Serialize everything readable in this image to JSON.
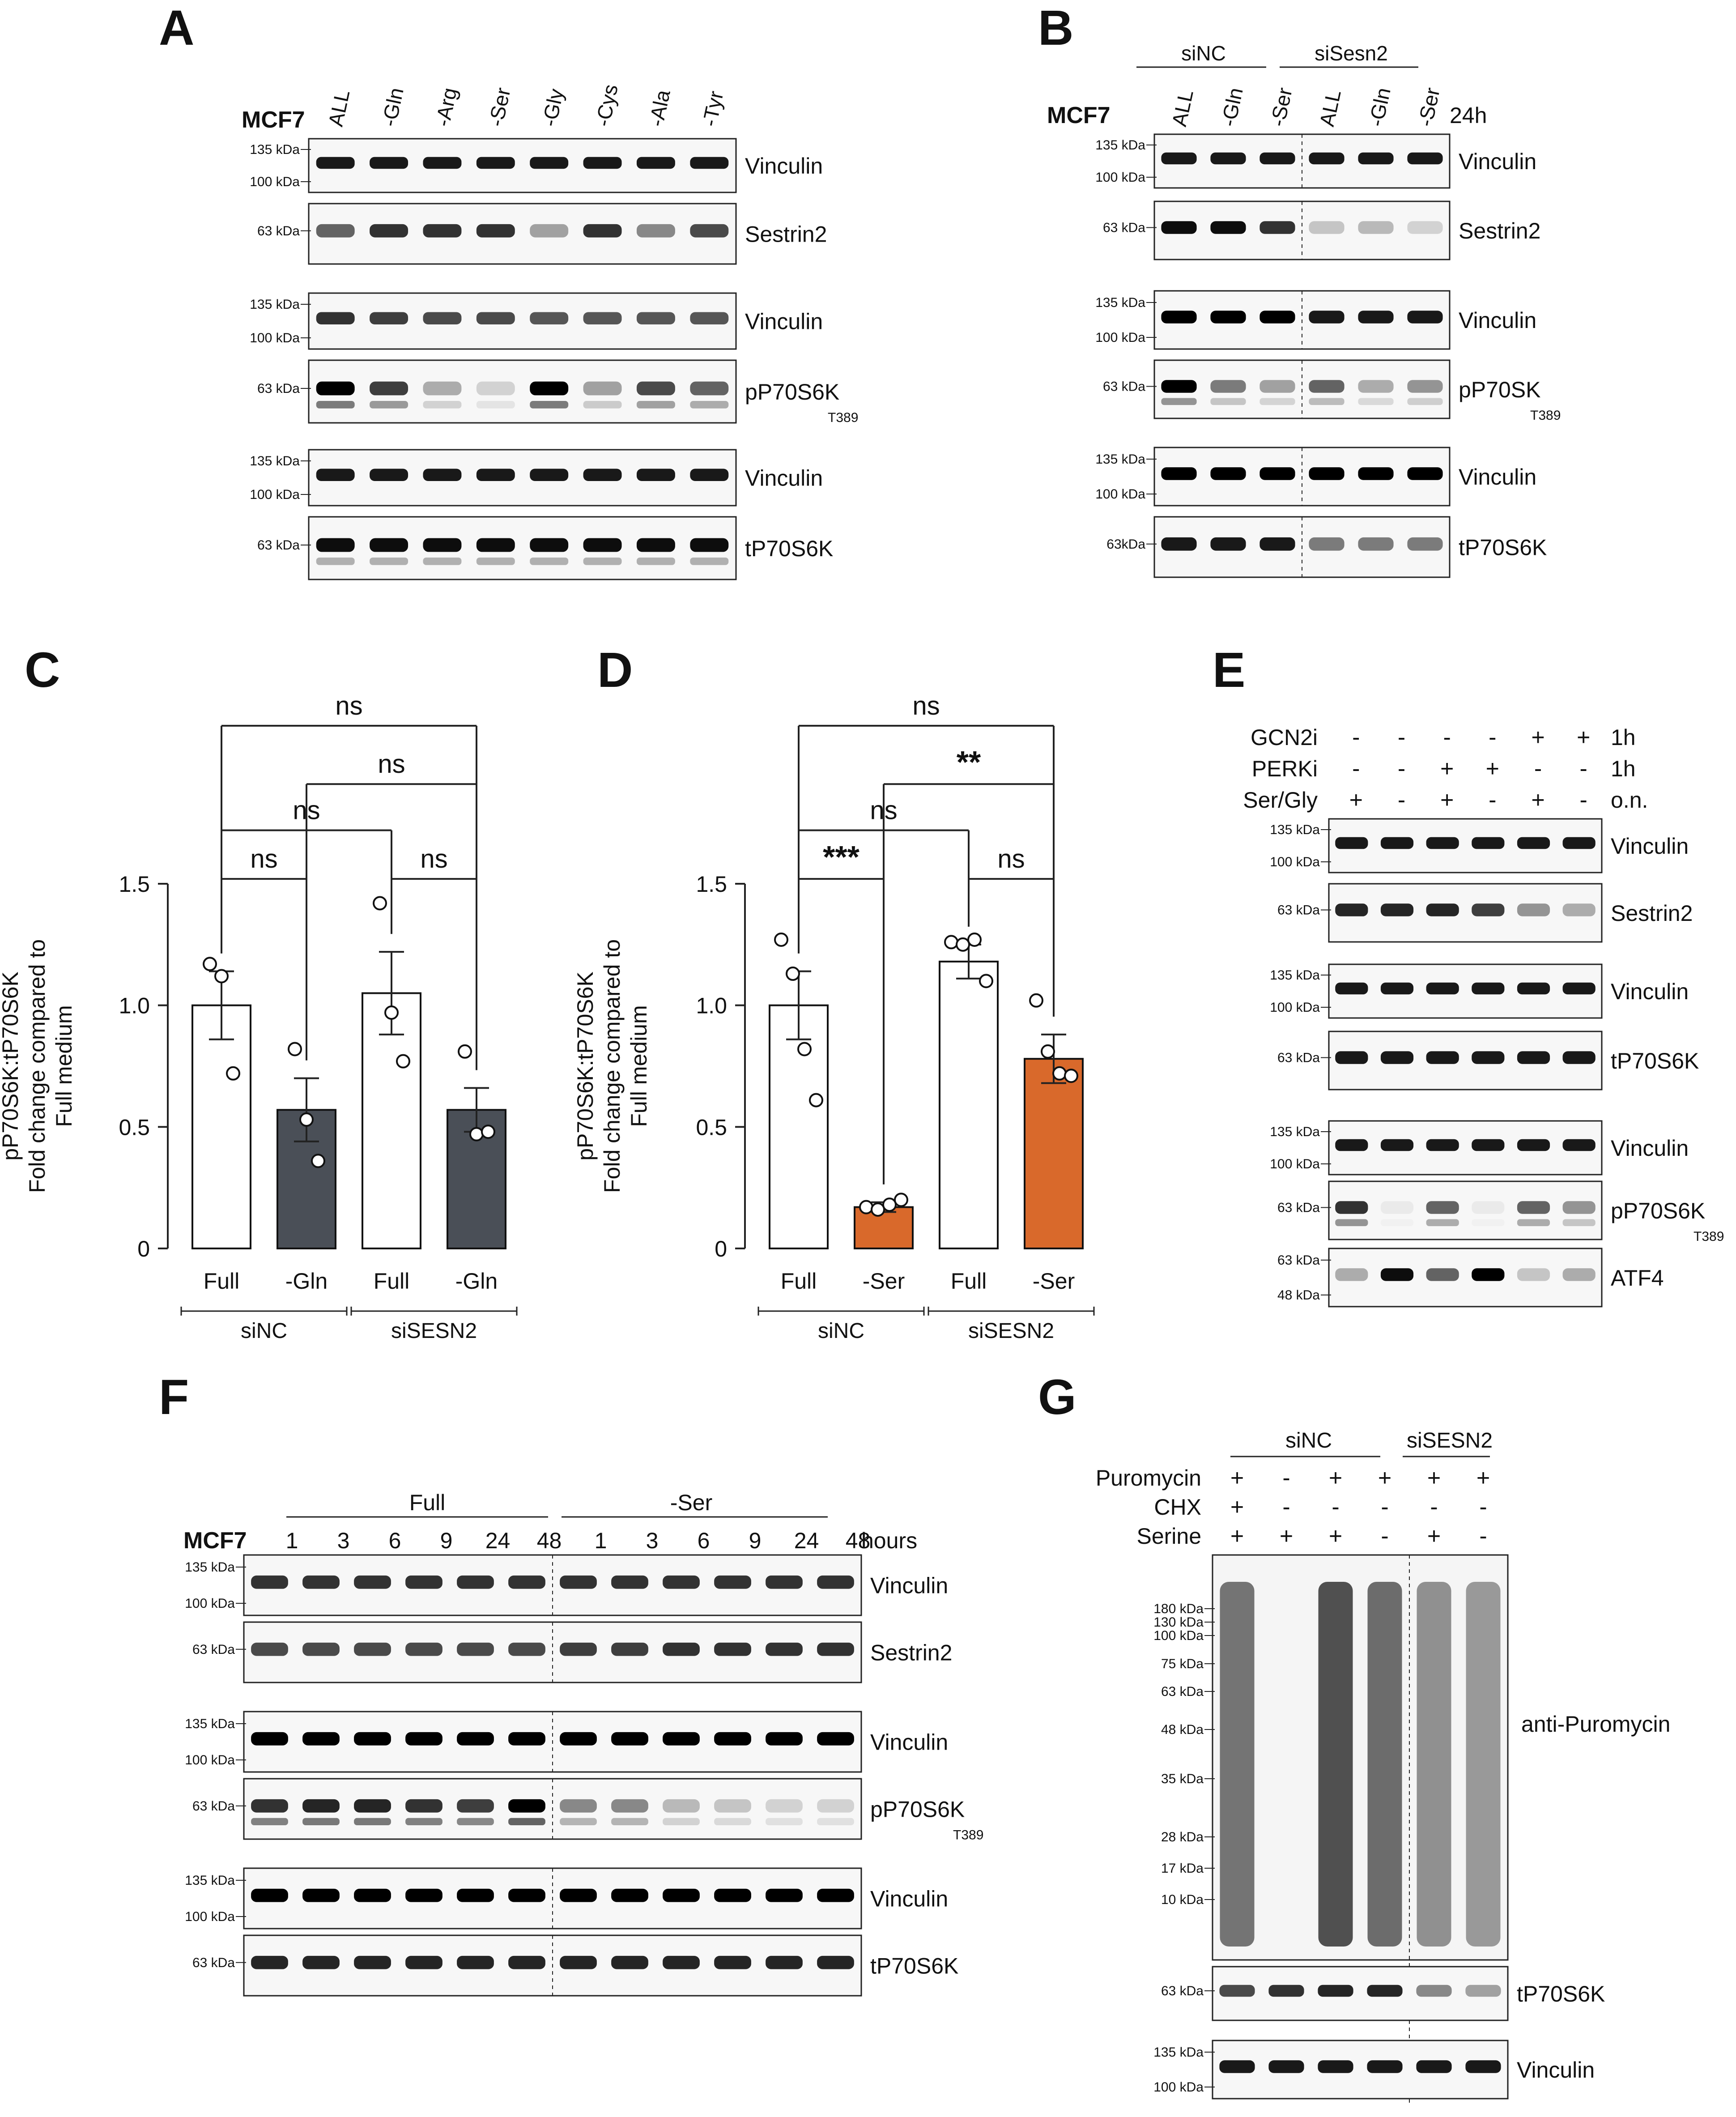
{
  "panels": {
    "A": {
      "letter": "A",
      "cell_line": "MCF7",
      "lanes": [
        "ALL",
        "-Gln",
        "-Arg",
        "-Ser",
        "-Gly",
        "-Cys",
        "-Ala",
        "-Tyr"
      ],
      "blots": [
        {
          "label": "Vinculin",
          "markers": [
            "135 kDa",
            "100 kDa"
          ]
        },
        {
          "label": "Sestrin2",
          "markers": [
            "63 kDa"
          ]
        },
        {
          "label": "Vinculin",
          "markers": [
            "135 kDa",
            "100 kDa"
          ]
        },
        {
          "label": "pP70S6K",
          "sub": "T389",
          "markers": [
            "63 kDa"
          ]
        },
        {
          "label": "Vinculin",
          "markers": [
            "135 kDa",
            "100 kDa"
          ]
        },
        {
          "label": "tP70S6K",
          "markers": [
            "63 kDa"
          ]
        }
      ]
    },
    "B": {
      "letter": "B",
      "cell_line": "MCF7",
      "time": "24h",
      "groups": [
        "siNC",
        "siSesn2"
      ],
      "lanes": [
        "ALL",
        "-Gln",
        "-Ser",
        "ALL",
        "-Gln",
        "-Ser"
      ],
      "blots": [
        {
          "label": "Vinculin",
          "markers": [
            "135 kDa",
            "100 kDa"
          ]
        },
        {
          "label": "Sestrin2",
          "markers": [
            "63 kDa"
          ]
        },
        {
          "label": "Vinculin",
          "markers": [
            "135 kDa",
            "100 kDa"
          ]
        },
        {
          "label": "pP70SK",
          "sub": "T389",
          "markers": [
            "63 kDa"
          ]
        },
        {
          "label": "Vinculin",
          "markers": [
            "135 kDa",
            "100 kDa"
          ]
        },
        {
          "label": "tP70S6K",
          "markers": [
            "63kDa"
          ]
        }
      ]
    },
    "C": {
      "letter": "C"
    },
    "D": {
      "letter": "D"
    },
    "E": {
      "letter": "E",
      "treatments": [
        {
          "name": "GCN2i",
          "signs": [
            "-",
            "-",
            "-",
            "-",
            "+",
            "+"
          ],
          "time": "1h"
        },
        {
          "name": "PERKi",
          "signs": [
            "-",
            "-",
            "+",
            "+",
            "-",
            "-"
          ],
          "time": "1h"
        },
        {
          "name": "Ser/Gly",
          "signs": [
            "+",
            "-",
            "+",
            "-",
            "+",
            "-"
          ],
          "time": "o.n."
        }
      ],
      "blots": [
        {
          "label": "Vinculin",
          "markers": [
            "135 kDa",
            "100 kDa"
          ]
        },
        {
          "label": "Sestrin2",
          "markers": [
            "63 kDa"
          ]
        },
        {
          "label": "Vinculin",
          "markers": [
            "135 kDa",
            "100 kDa"
          ]
        },
        {
          "label": "tP70S6K",
          "markers": [
            "63 kDa"
          ]
        },
        {
          "label": "Vinculin",
          "markers": [
            "135 kDa",
            "100 kDa"
          ]
        },
        {
          "label": "pP70S6K",
          "sub": "T389",
          "markers": [
            "63 kDa"
          ]
        },
        {
          "label": "ATF4",
          "markers": [
            "63 kDa",
            "48 kDa"
          ]
        }
      ]
    },
    "F": {
      "letter": "F",
      "cell_line": "MCF7",
      "groups": [
        "Full",
        "-Ser"
      ],
      "lanes": [
        "1",
        "3",
        "6",
        "9",
        "24",
        "48",
        "1",
        "3",
        "6",
        "9",
        "24",
        "48"
      ],
      "hours_label": "hours",
      "blots": [
        {
          "label": "Vinculin",
          "markers": [
            "135 kDa",
            "100 kDa"
          ]
        },
        {
          "label": "Sestrin2",
          "markers": [
            "63 kDa"
          ]
        },
        {
          "label": "Vinculin",
          "markers": [
            "135 kDa",
            "100 kDa"
          ]
        },
        {
          "label": "pP70S6K",
          "sub": "T389",
          "markers": [
            "63 kDa"
          ]
        },
        {
          "label": "Vinculin",
          "markers": [
            "135 kDa",
            "100 kDa"
          ]
        },
        {
          "label": "tP70S6K",
          "markers": [
            "63 kDa"
          ]
        }
      ]
    },
    "G": {
      "letter": "G",
      "groups": [
        "siNC",
        "siSESN2"
      ],
      "treatments": [
        {
          "name": "Puromycin",
          "signs": [
            "+",
            "-",
            "+",
            "+",
            "+",
            "+"
          ]
        },
        {
          "name": "CHX",
          "signs": [
            "+",
            "-",
            "-",
            "-",
            "-",
            "-"
          ]
        },
        {
          "name": "Serine",
          "signs": [
            "+",
            "+",
            "+",
            "-",
            "+",
            "-"
          ]
        }
      ],
      "blots": [
        {
          "label": "anti-Puromycin",
          "markers": [
            "180 kDa",
            "130 kDa",
            "100 kDa",
            "75 kDa",
            "63 kDa",
            "48 kDa",
            "35 kDa",
            "28 kDa",
            "17 kDa",
            "10 kDa"
          ]
        },
        {
          "label": "tP70S6K",
          "markers": [
            "63 kDa"
          ]
        },
        {
          "label": "Vinculin",
          "markers": [
            "135 kDa",
            "100 kDa"
          ]
        }
      ]
    }
  },
  "chart_data": [
    {
      "panel": "C",
      "type": "bar",
      "ylabel": "pP70S6K:tP70S6K\nFold change compared to\nFull medium",
      "yticks": [
        "0",
        "0.5",
        "1.0",
        "1.5"
      ],
      "ylim": [
        0,
        1.5
      ],
      "categories": [
        "Full",
        "-Gln",
        "Full",
        "-Gln"
      ],
      "groups": [
        {
          "name": "siNC",
          "categories": [
            0,
            1
          ]
        },
        {
          "name": "siSESN2",
          "categories": [
            2,
            3
          ]
        }
      ],
      "values": [
        1.0,
        0.57,
        1.05,
        0.57
      ],
      "errors": [
        0.14,
        0.13,
        0.17,
        0.09
      ],
      "points": [
        [
          1.17,
          1.12,
          0.72
        ],
        [
          0.82,
          0.53,
          0.36
        ],
        [
          1.42,
          0.97,
          0.77
        ],
        [
          0.81,
          0.47,
          0.48
        ]
      ],
      "bar_colors": [
        "#ffffff",
        "#4a4f57",
        "#ffffff",
        "#4a4f57"
      ],
      "comparisons": [
        {
          "from": 0,
          "to": 1,
          "label": "ns"
        },
        {
          "from": 2,
          "to": 3,
          "label": "ns"
        },
        {
          "from": 0,
          "to": 2,
          "label": "ns"
        },
        {
          "from": 1,
          "to": 3,
          "label": "ns"
        },
        {
          "from": 0,
          "to": 3,
          "label": "ns"
        }
      ]
    },
    {
      "panel": "D",
      "type": "bar",
      "ylabel": "pP70S6K:tP70S6K\nFold change compared to\nFull medium",
      "yticks": [
        "0",
        "0.5",
        "1.0",
        "1.5"
      ],
      "ylim": [
        0,
        1.5
      ],
      "categories": [
        "Full",
        "-Ser",
        "Full",
        "-Ser"
      ],
      "groups": [
        {
          "name": "siNC",
          "categories": [
            0,
            1
          ]
        },
        {
          "name": "siSESN2",
          "categories": [
            2,
            3
          ]
        }
      ],
      "values": [
        1.0,
        0.17,
        1.18,
        0.78
      ],
      "errors": [
        0.14,
        0.02,
        0.07,
        0.1
      ],
      "points": [
        [
          1.27,
          1.13,
          0.82,
          0.61
        ],
        [
          0.17,
          0.16,
          0.18,
          0.2
        ],
        [
          1.26,
          1.25,
          1.27,
          1.1
        ],
        [
          1.02,
          0.81,
          0.72,
          0.71
        ]
      ],
      "bar_colors": [
        "#ffffff",
        "#d9692b",
        "#ffffff",
        "#d9692b"
      ],
      "comparisons": [
        {
          "from": 0,
          "to": 1,
          "label": "***"
        },
        {
          "from": 2,
          "to": 3,
          "label": "ns"
        },
        {
          "from": 0,
          "to": 2,
          "label": "ns"
        },
        {
          "from": 1,
          "to": 3,
          "label": "**"
        },
        {
          "from": 0,
          "to": 3,
          "label": "ns"
        }
      ]
    }
  ]
}
